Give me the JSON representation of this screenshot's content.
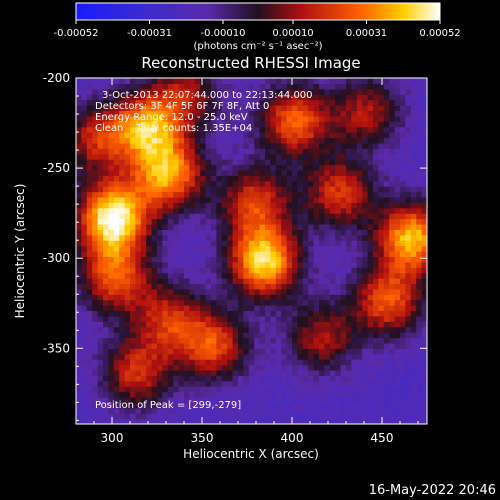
{
  "chart_data": {
    "type": "heatmap",
    "title": "Reconstructed RHESSI Image",
    "xlabel": "Heliocentric X (arcsec)",
    "ylabel": "Heliocentric Y (arcsec)",
    "xlim": [
      280,
      475
    ],
    "ylim": [
      -392,
      -200
    ],
    "x_ticks": [
      300,
      350,
      400,
      450
    ],
    "y_ticks": [
      -200,
      -250,
      -300,
      -350
    ],
    "colorbar": {
      "min": -0.00052,
      "max": 0.00052,
      "ticks": [
        "-0.00052",
        "-0.00031",
        "-0.00010",
        "0.00010",
        "0.00031",
        "0.00052"
      ],
      "units": "(photons cm⁻² s⁻¹ asec⁻²)"
    },
    "annotations": [
      "3-Oct-2013 22:07:44.000 to 22:13:44.000",
      "Detectors: 3F 4F 5F 6F 7F 8F, Att 0",
      "Energy Range: 12.0 - 25.0 keV",
      "Clean    Total counts: 1.35E+04"
    ],
    "peak_label": "Position of Peak = [299,-279]",
    "peak": [
      299,
      -279
    ],
    "blobs": [
      {
        "x": 299,
        "y": -279,
        "value": 0.00052
      },
      {
        "x": 330,
        "y": -255,
        "value": 0.00035
      },
      {
        "x": 318,
        "y": -228,
        "value": 0.0003
      },
      {
        "x": 300,
        "y": -312,
        "value": 0.00025
      },
      {
        "x": 312,
        "y": -365,
        "value": 0.00018
      },
      {
        "x": 383,
        "y": -303,
        "value": 0.00045
      },
      {
        "x": 400,
        "y": -225,
        "value": 0.00028
      },
      {
        "x": 378,
        "y": -270,
        "value": 0.0002
      },
      {
        "x": 425,
        "y": -265,
        "value": 0.0002
      },
      {
        "x": 465,
        "y": -290,
        "value": 0.0004
      },
      {
        "x": 452,
        "y": -325,
        "value": 0.00025
      },
      {
        "x": 355,
        "y": -350,
        "value": 0.00022
      },
      {
        "x": 415,
        "y": -345,
        "value": 0.00012
      },
      {
        "x": 290,
        "y": -235,
        "value": 0.00015
      },
      {
        "x": 340,
        "y": -210,
        "value": 0.0001
      },
      {
        "x": 440,
        "y": -220,
        "value": 0.00012
      },
      {
        "x": 330,
        "y": -335,
        "value": 0.00015
      }
    ],
    "background_value": -0.00022,
    "grid": false
  },
  "footer": {
    "timestamp": "16-May-2022 20:46"
  }
}
